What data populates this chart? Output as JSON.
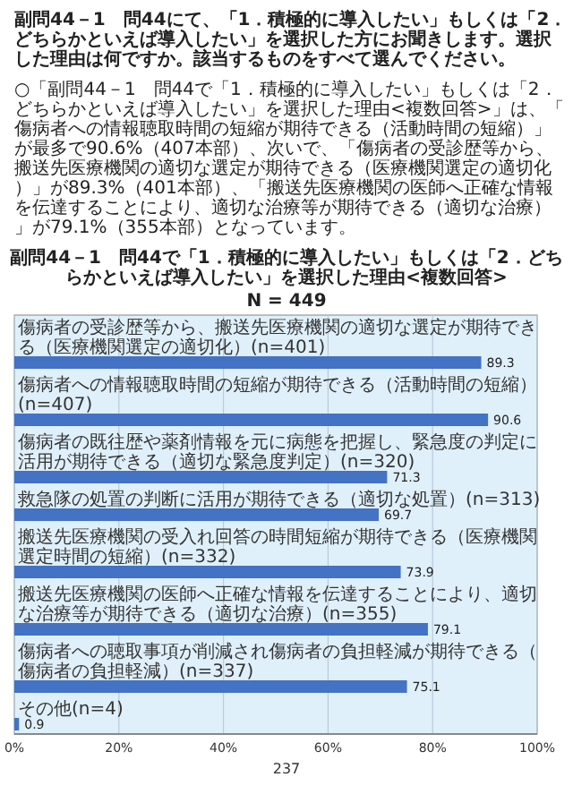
{
  "chart_data": {
    "type": "bar",
    "orientation": "horizontal",
    "title": "副問44－1　問44で「1．積極的に導入したい」もしくは「2．どちらかといえば導入したい」を選択した理由<複数回答>",
    "subtitle": "N = 449",
    "categories": [
      "傷病者の受診歴等から、搬送先医療機関の適切な選定が期待できる（医療機関選定の適切化）(n=401)",
      "傷病者への情報聴取時間の短縮が期待できる（活動時間の短縮）(n=407)",
      "傷病者の既往歴や薬剤情報を元に病態を把握し、緊急度の判定に活用が期待できる（適切な緊急度判定）(n=320)",
      "救急隊の処置の判断に活用が期待できる（適切な処置）(n=313)",
      "搬送先医療機関の受入れ回答の時間短縮が期待できる（医療機関選定時間の短縮）(n=332)",
      "搬送先医療機関の医師へ正確な情報を伝達することにより、適切な治療等が期待できる（適切な治療）(n=355)",
      "傷病者への聴取事項が削減され傷病者の負担軽減が期待できる（傷病者の負担軽減）(n=337)",
      "その他(n=4)"
    ],
    "values": [
      89.3,
      90.6,
      71.3,
      69.7,
      73.9,
      79.1,
      75.1,
      0.9
    ],
    "color": "#4472c4",
    "data_labels": true,
    "grid": "x",
    "xlim": [
      0,
      100
    ],
    "xticks": [
      {
        "value": 0,
        "label": "0%"
      },
      {
        "value": 20,
        "label": "20%"
      },
      {
        "value": 40,
        "label": "40%"
      },
      {
        "value": 60,
        "label": "60%"
      },
      {
        "value": 80,
        "label": "80%"
      },
      {
        "value": 100,
        "label": "100%"
      }
    ],
    "annotations": [
      "副問44－1　問44にて、「1．積極的に導入したい」もしくは「2．どちらかといえば導入したい」を選択した方にお聞きします。選択した理由は何ですか。該当するものをすべて選んでください。",
      "○「副問44－1　問44で「1．積極的に導入したい」もしくは「2．どちらかといえば導入したい」を選択した理由<複数回答>」は、「傷病者への情報聴取時間の短縮が期待できる（活動時間の短縮）」が最多で90.6%（407本部）、次いで、「傷病者の受診歴等から、搬送先医療機関の適切な選定が期待できる（医療機関選定の適切化）」が89.3%（401本部）、「搬送先医療機関の医師へ正確な情報を伝達することにより、適切な治療等が期待できる（適切な治療）」が79.1%（355本部）となっています。",
      "237"
    ]
  }
}
